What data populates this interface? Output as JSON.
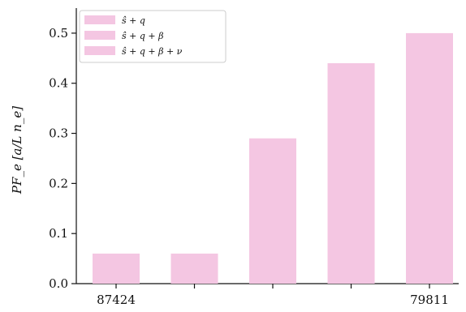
{
  "chart_data": {
    "type": "bar",
    "categories": [
      "87424",
      "",
      "",
      "",
      "79811"
    ],
    "values": [
      0.06,
      0.06,
      0.29,
      0.44,
      0.5
    ],
    "ylabel": "PF_e [a/L n_e]",
    "ylim": [
      0,
      0.55
    ],
    "yticks": [
      "0.0",
      "0.1",
      "0.2",
      "0.3",
      "0.4",
      "0.5"
    ],
    "bar_color": "#f4c6e2",
    "legend": {
      "position": "top-left",
      "entries": [
        "ŝ + q",
        "ŝ + q + β",
        "ŝ + q + β + ν"
      ]
    }
  }
}
